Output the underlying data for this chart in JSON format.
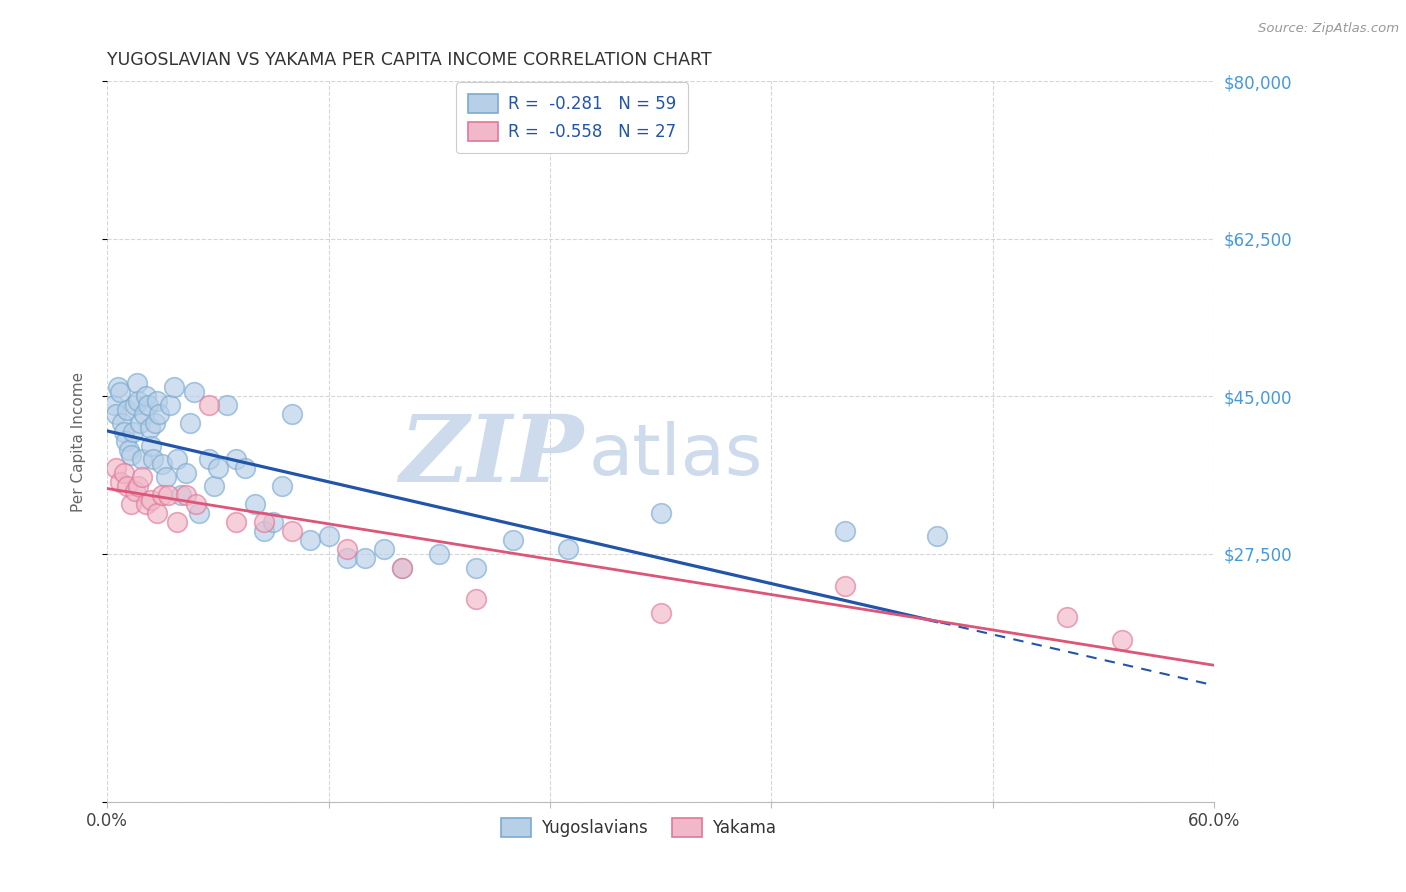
{
  "title": "YUGOSLAVIAN VS YAKAMA PER CAPITA INCOME CORRELATION CHART",
  "source": "Source: ZipAtlas.com",
  "ylabel": "Per Capita Income",
  "background_color": "#ffffff",
  "grid_color": "#cccccc",
  "blue_scatter_face": "#b8cfe8",
  "blue_scatter_edge": "#7aaad0",
  "pink_scatter_face": "#f0b8c8",
  "pink_scatter_edge": "#e07898",
  "blue_line_color": "#2255aa",
  "pink_line_color": "#dd5577",
  "right_axis_color": "#4499dd",
  "legend_text_color": "#2255aa",
  "watermark_color": "#c8d8ea",
  "yticks": [
    0,
    27500,
    45000,
    62500,
    80000
  ],
  "ytick_labels": [
    "",
    "$27,500",
    "$45,000",
    "$62,500",
    "$80,000"
  ],
  "xlim": [
    0.0,
    0.6
  ],
  "ylim": [
    0,
    80000
  ],
  "yugoslavians_x": [
    0.004,
    0.005,
    0.006,
    0.007,
    0.008,
    0.009,
    0.01,
    0.011,
    0.012,
    0.013,
    0.014,
    0.015,
    0.016,
    0.017,
    0.018,
    0.019,
    0.02,
    0.021,
    0.022,
    0.023,
    0.024,
    0.025,
    0.026,
    0.027,
    0.028,
    0.03,
    0.032,
    0.034,
    0.036,
    0.038,
    0.04,
    0.043,
    0.045,
    0.047,
    0.05,
    0.055,
    0.058,
    0.06,
    0.065,
    0.07,
    0.075,
    0.08,
    0.085,
    0.09,
    0.095,
    0.1,
    0.11,
    0.12,
    0.13,
    0.14,
    0.15,
    0.16,
    0.18,
    0.2,
    0.22,
    0.25,
    0.3,
    0.4,
    0.45
  ],
  "yugoslavians_y": [
    44000,
    43000,
    46000,
    45500,
    42000,
    41000,
    40000,
    43500,
    39000,
    38500,
    41000,
    44000,
    46500,
    44500,
    42000,
    38000,
    43000,
    45000,
    44000,
    41500,
    39500,
    38000,
    42000,
    44500,
    43000,
    37500,
    36000,
    44000,
    46000,
    38000,
    34000,
    36500,
    42000,
    45500,
    32000,
    38000,
    35000,
    37000,
    44000,
    38000,
    37000,
    33000,
    30000,
    31000,
    35000,
    43000,
    29000,
    29500,
    27000,
    27000,
    28000,
    26000,
    27500,
    26000,
    29000,
    28000,
    32000,
    30000,
    29500
  ],
  "yakama_x": [
    0.005,
    0.007,
    0.009,
    0.011,
    0.013,
    0.015,
    0.017,
    0.019,
    0.021,
    0.024,
    0.027,
    0.03,
    0.033,
    0.038,
    0.043,
    0.048,
    0.055,
    0.07,
    0.085,
    0.1,
    0.13,
    0.16,
    0.2,
    0.3,
    0.4,
    0.52,
    0.55
  ],
  "yakama_y": [
    37000,
    35500,
    36500,
    35000,
    33000,
    34500,
    35000,
    36000,
    33000,
    33500,
    32000,
    34000,
    34000,
    31000,
    34000,
    33000,
    44000,
    31000,
    31000,
    30000,
    28000,
    26000,
    22500,
    21000,
    24000,
    20500,
    18000
  ],
  "blue_line_x_solid_end": 0.45,
  "legend_blue_label": "R =  -0.281   N = 59",
  "legend_pink_label": "R =  -0.558   N = 27"
}
